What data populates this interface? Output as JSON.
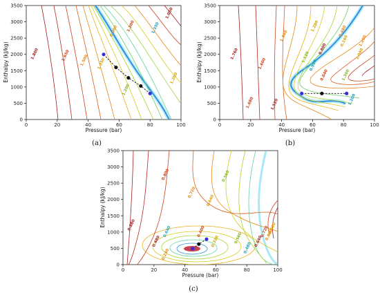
{
  "chart_data": [
    {
      "type": "contour",
      "panel_label": "(a)",
      "xlabel": "Pressure (bar)",
      "ylabel": "Enthalpy (kJ/kg)",
      "xlim": [
        0,
        100
      ],
      "ylim": [
        0,
        3500
      ],
      "x_ticks": [
        "0",
        "20",
        "40",
        "60",
        "80",
        "100"
      ],
      "y_ticks": [
        "0",
        "500",
        "1000",
        "1500",
        "2000",
        "2500",
        "3000",
        "3500"
      ],
      "contour_labels": [
        {
          "text": "1.800",
          "x": 6,
          "y": 2000
        },
        {
          "text": "1.650",
          "x": 26,
          "y": 1950
        },
        {
          "text": "1.500",
          "x": 38,
          "y": 1800
        },
        {
          "text": "1.350",
          "x": 49,
          "y": 1700
        },
        {
          "text": "1.200",
          "x": 65,
          "y": 900
        },
        {
          "text": "1.350",
          "x": 84,
          "y": 2800
        },
        {
          "text": "1.050",
          "x": 93,
          "y": 3250
        },
        {
          "text": "1.200",
          "x": 68,
          "y": 2850
        },
        {
          "text": "0.900",
          "x": 57,
          "y": 2700
        },
        {
          "text": "1.200",
          "x": 96,
          "y": 1250
        }
      ],
      "path_points": [
        [
          50,
          2000
        ],
        [
          58,
          1600
        ],
        [
          66,
          1280
        ],
        [
          74,
          1030
        ],
        [
          80,
          800
        ]
      ],
      "min_point": [
        80,
        800
      ]
    },
    {
      "type": "contour",
      "panel_label": "(b)",
      "xlabel": "Pressure (bar)",
      "ylabel": "Enthalpy (kJ/kg)",
      "xlim": [
        0,
        100
      ],
      "ylim": [
        0,
        3500
      ],
      "x_ticks": [
        "0",
        "20",
        "40",
        "60",
        "80",
        "100"
      ],
      "y_ticks": [
        "0",
        "500",
        "1000",
        "1500",
        "2000",
        "2500",
        "3000",
        "3500"
      ],
      "contour_labels": [
        {
          "text": "1.760",
          "x": 10,
          "y": 2000
        },
        {
          "text": "1.600",
          "x": 28,
          "y": 1700
        },
        {
          "text": "1.440",
          "x": 42,
          "y": 2550
        },
        {
          "text": "1.280",
          "x": 62,
          "y": 2850
        },
        {
          "text": "1.120",
          "x": 56,
          "y": 1900
        },
        {
          "text": "0.960",
          "x": 61,
          "y": 1650
        },
        {
          "text": "0.800",
          "x": 67,
          "y": 2150
        },
        {
          "text": "0.640",
          "x": 68,
          "y": 1350
        },
        {
          "text": "0.480",
          "x": 80,
          "y": 2700
        },
        {
          "text": "0.160",
          "x": 81,
          "y": 2400
        },
        {
          "text": "1.360",
          "x": 82,
          "y": 1350
        },
        {
          "text": "1.200",
          "x": 86,
          "y": 600
        },
        {
          "text": "1.520",
          "x": 36,
          "y": 450
        },
        {
          "text": "1.680",
          "x": 20,
          "y": 500
        },
        {
          "text": "1.200",
          "x": 93,
          "y": 2400
        },
        {
          "text": "1.040",
          "x": 91,
          "y": 2000
        }
      ],
      "path_points": [
        [
          53,
          800
        ],
        [
          66,
          800
        ],
        [
          82,
          800
        ]
      ],
      "min_point": [
        53,
        800
      ]
    },
    {
      "type": "contour",
      "panel_label": "(c)",
      "xlabel": "Pressure (bar)",
      "ylabel": "Enthalpy (kJ/kg)",
      "xlim": [
        0,
        100
      ],
      "ylim": [
        0,
        3500
      ],
      "x_ticks": [
        "0",
        "20",
        "40",
        "60",
        "80",
        "100"
      ],
      "y_ticks": [
        "0",
        "500",
        "1000",
        "1500",
        "2000",
        "2500",
        "3000",
        "3500"
      ],
      "contour_labels": [
        {
          "text": "0.880",
          "x": 6,
          "y": 1200
        },
        {
          "text": "0.800",
          "x": 28,
          "y": 2750
        },
        {
          "text": "0.720",
          "x": 45,
          "y": 2200
        },
        {
          "text": "0.640",
          "x": 57,
          "y": 1950
        },
        {
          "text": "0.560",
          "x": 67,
          "y": 2700
        },
        {
          "text": "0.640",
          "x": 29,
          "y": 1000
        },
        {
          "text": "0.480",
          "x": 22,
          "y": 700
        },
        {
          "text": "0.400",
          "x": 51,
          "y": 1000
        },
        {
          "text": "0.240",
          "x": 28,
          "y": 300
        },
        {
          "text": "0.320",
          "x": 60,
          "y": 700
        },
        {
          "text": "0.560",
          "x": 75,
          "y": 800
        },
        {
          "text": "0.480",
          "x": 81,
          "y": 500
        },
        {
          "text": "0.640",
          "x": 88,
          "y": 700
        },
        {
          "text": "0.720",
          "x": 92,
          "y": 1000
        },
        {
          "text": "0.800",
          "x": 95,
          "y": 900
        },
        {
          "text": "0.880",
          "x": 97,
          "y": 1100
        }
      ],
      "path_points": [
        [
          54,
          780
        ],
        [
          49,
          630
        ],
        [
          45,
          490
        ]
      ],
      "min_point": [
        45,
        490
      ]
    }
  ]
}
